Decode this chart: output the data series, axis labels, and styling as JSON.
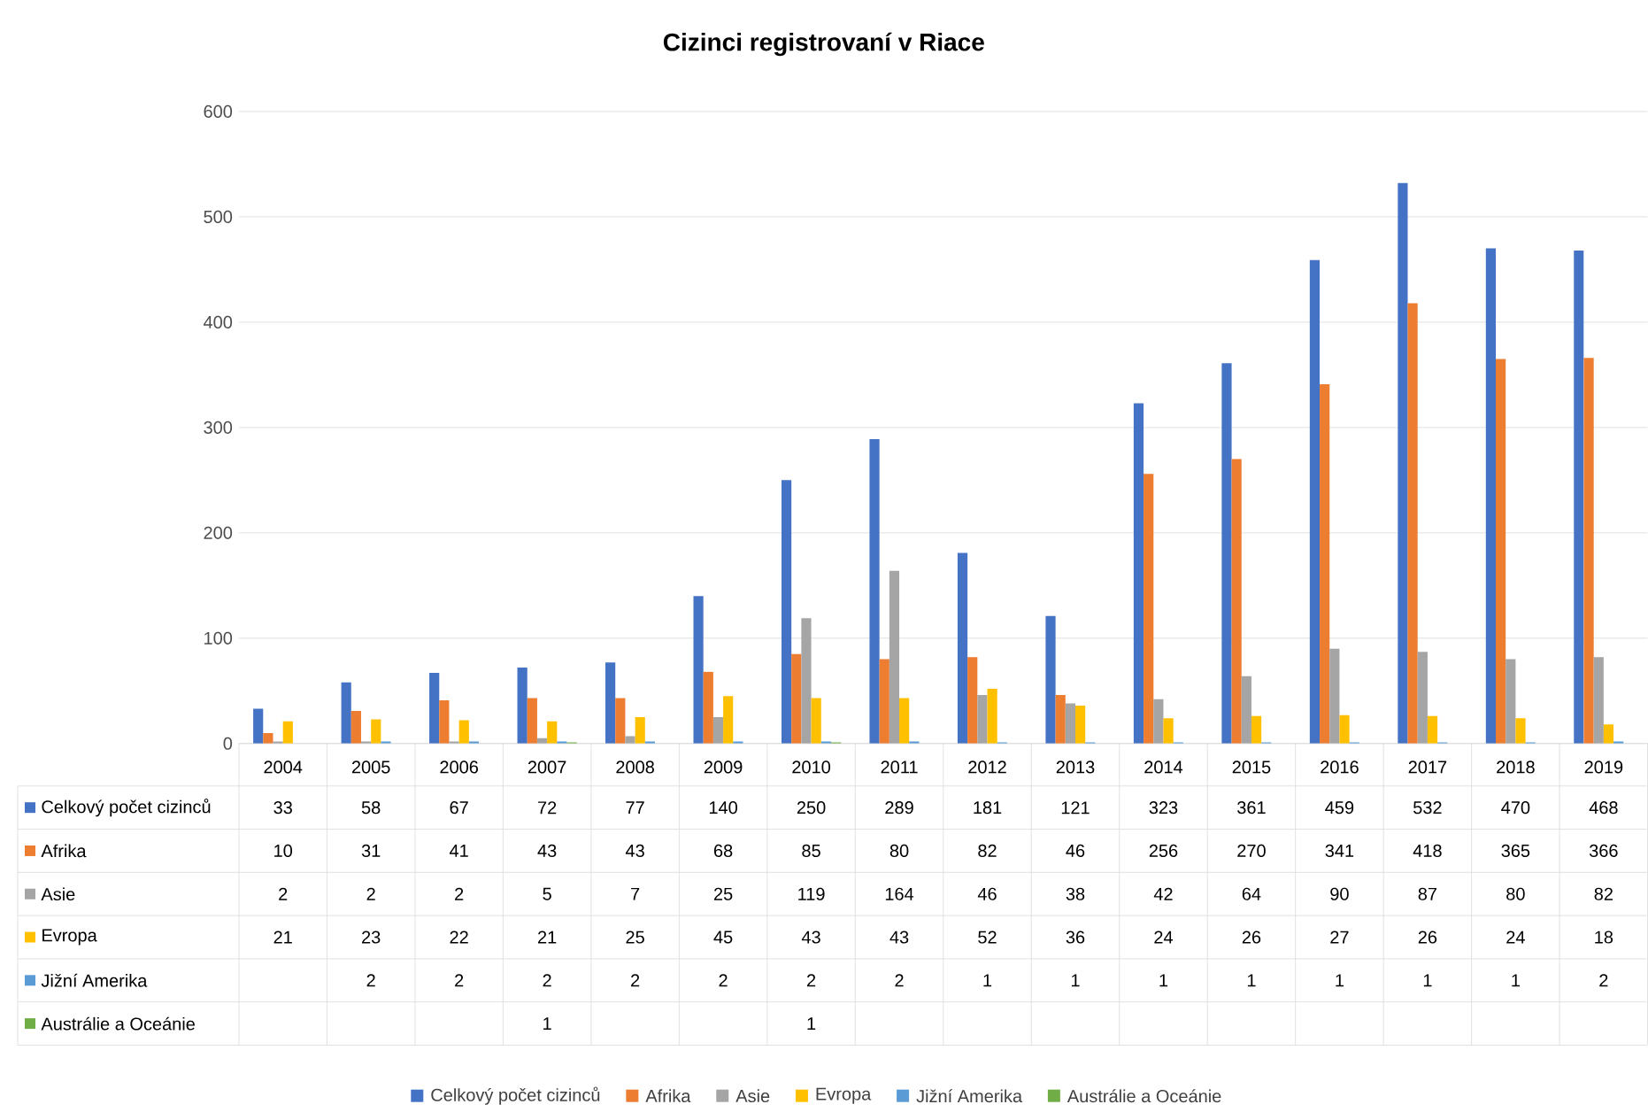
{
  "chart_data": {
    "type": "bar",
    "title": "Cizinci registrovaní v Riace",
    "categories": [
      "2004",
      "2005",
      "2006",
      "2007",
      "2008",
      "2009",
      "2010",
      "2011",
      "2012",
      "2013",
      "2014",
      "2015",
      "2016",
      "2017",
      "2018",
      "2019"
    ],
    "series": [
      {
        "name": "Celkový počet cizinců",
        "color": "#4472c4",
        "values": [
          33,
          58,
          67,
          72,
          77,
          140,
          250,
          289,
          181,
          121,
          323,
          361,
          459,
          532,
          470,
          468
        ]
      },
      {
        "name": "Afrika",
        "color": "#ed7d31",
        "values": [
          10,
          31,
          41,
          43,
          43,
          68,
          85,
          80,
          82,
          46,
          256,
          270,
          341,
          418,
          365,
          366
        ]
      },
      {
        "name": "Asie",
        "color": "#a5a5a5",
        "values": [
          2,
          2,
          2,
          5,
          7,
          25,
          119,
          164,
          46,
          38,
          42,
          64,
          90,
          87,
          80,
          82
        ]
      },
      {
        "name": "Evropa",
        "color": "#ffc000",
        "values": [
          21,
          23,
          22,
          21,
          25,
          45,
          43,
          43,
          52,
          36,
          24,
          26,
          27,
          26,
          24,
          18
        ]
      },
      {
        "name": "Jižní Amerika",
        "color": "#5b9bd5",
        "values": [
          null,
          2,
          2,
          2,
          2,
          2,
          2,
          2,
          1,
          1,
          1,
          1,
          1,
          1,
          1,
          2
        ]
      },
      {
        "name": "Austrálie a Oceánie",
        "color": "#70ad47",
        "values": [
          null,
          null,
          null,
          1,
          null,
          null,
          1,
          null,
          null,
          null,
          null,
          null,
          null,
          null,
          null,
          null
        ]
      }
    ],
    "ylim": [
      0,
      600
    ],
    "yticks": [
      0,
      100,
      200,
      300,
      400,
      500,
      600
    ],
    "grid": "y",
    "legend": "bottom",
    "data_labels": true
  }
}
